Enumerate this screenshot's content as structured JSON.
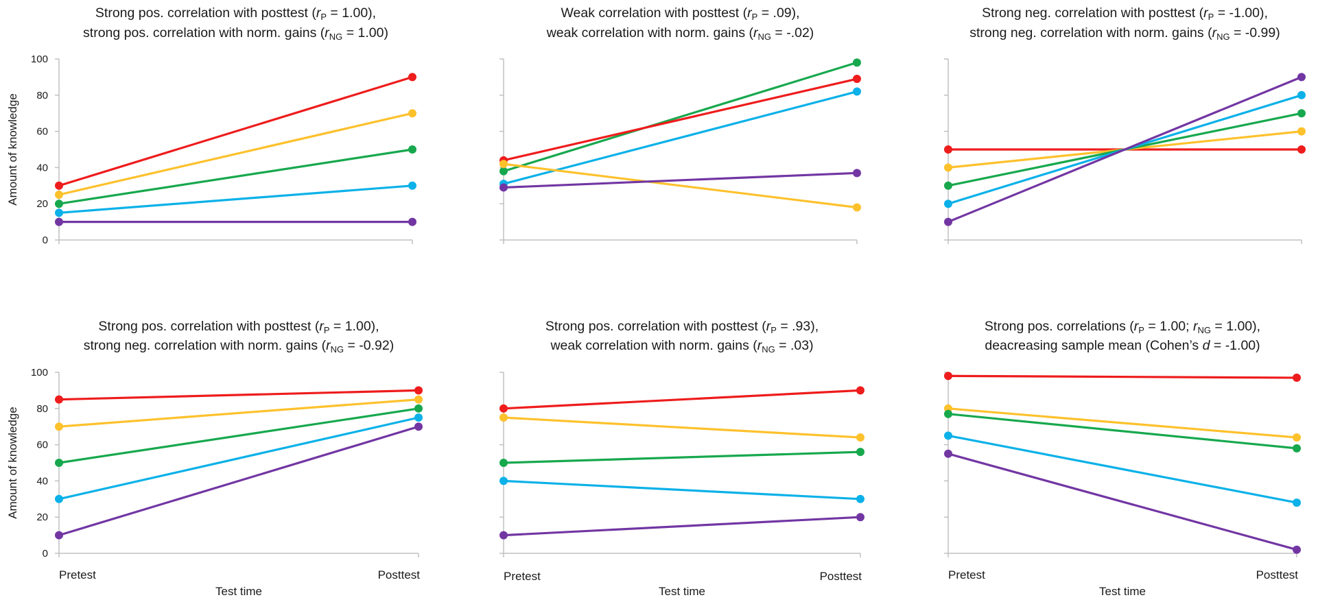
{
  "colors": {
    "red": "#ee1c1c",
    "yellow": "#fdc12c",
    "green": "#17a84e",
    "blue": "#0bb1e8",
    "purple": "#7236a3",
    "axis": "#c0c0c0"
  },
  "chart_data": [
    {
      "type": "line",
      "title_lines": [
        [
          {
            "t": "Strong pos. correlation with posttest ("
          },
          {
            "t": "r",
            "i": true
          },
          {
            "t": "P",
            "s": true
          },
          {
            "t": " = 1.00),"
          }
        ],
        [
          {
            "t": "strong pos. correlation with norm. gains ("
          },
          {
            "t": "r",
            "i": true
          },
          {
            "t": "NG",
            "s": true
          },
          {
            "t": " = 1.00)"
          }
        ]
      ],
      "categories": [
        "Pretest",
        "Posttest"
      ],
      "show_categories": false,
      "xlabel": "",
      "ylabel": "Amount of knowledge",
      "show_ytick_labels": true,
      "yticks": [
        0,
        20,
        40,
        60,
        80,
        100
      ],
      "ylim": [
        0,
        100
      ],
      "series": [
        {
          "color": "#ee1c1c",
          "values": [
            30,
            90
          ]
        },
        {
          "color": "#fdc12c",
          "values": [
            25,
            70
          ]
        },
        {
          "color": "#17a84e",
          "values": [
            20,
            50
          ]
        },
        {
          "color": "#0bb1e8",
          "values": [
            15,
            30
          ]
        },
        {
          "color": "#7236a3",
          "values": [
            10,
            10
          ]
        }
      ]
    },
    {
      "type": "line",
      "title_lines": [
        [
          {
            "t": "Weak correlation with posttest ("
          },
          {
            "t": "r",
            "i": true
          },
          {
            "t": "P",
            "s": true
          },
          {
            "t": " = .09),"
          }
        ],
        [
          {
            "t": "weak correlation with norm. gains ("
          },
          {
            "t": "r",
            "i": true
          },
          {
            "t": "NG",
            "s": true
          },
          {
            "t": " = -.02)"
          }
        ]
      ],
      "categories": [
        "Pretest",
        "Posttest"
      ],
      "show_categories": false,
      "xlabel": "",
      "ylabel": "",
      "show_ytick_labels": false,
      "yticks": [
        0,
        20,
        40,
        60,
        80,
        100
      ],
      "ylim": [
        0,
        100
      ],
      "series": [
        {
          "color": "#17a84e",
          "values": [
            38,
            98
          ]
        },
        {
          "color": "#ee1c1c",
          "values": [
            44,
            89
          ]
        },
        {
          "color": "#0bb1e8",
          "values": [
            31,
            82
          ]
        },
        {
          "color": "#fdc12c",
          "values": [
            42,
            18
          ]
        },
        {
          "color": "#7236a3",
          "values": [
            29,
            37
          ]
        }
      ]
    },
    {
      "type": "line",
      "title_lines": [
        [
          {
            "t": "Strong neg. correlation with posttest ("
          },
          {
            "t": "r",
            "i": true
          },
          {
            "t": "P",
            "s": true
          },
          {
            "t": " = -1.00),"
          }
        ],
        [
          {
            "t": "strong neg. correlation with norm. gains ("
          },
          {
            "t": "r",
            "i": true
          },
          {
            "t": "NG",
            "s": true
          },
          {
            "t": " = -0.99)"
          }
        ]
      ],
      "categories": [
        "Pretest",
        "Posttest"
      ],
      "show_categories": false,
      "xlabel": "",
      "ylabel": "",
      "show_ytick_labels": false,
      "yticks": [
        0,
        20,
        40,
        60,
        80,
        100
      ],
      "ylim": [
        0,
        100
      ],
      "series": [
        {
          "color": "#ee1c1c",
          "values": [
            50,
            50
          ]
        },
        {
          "color": "#fdc12c",
          "values": [
            40,
            60
          ]
        },
        {
          "color": "#17a84e",
          "values": [
            30,
            70
          ]
        },
        {
          "color": "#0bb1e8",
          "values": [
            20,
            80
          ]
        },
        {
          "color": "#7236a3",
          "values": [
            10,
            90
          ]
        }
      ]
    },
    {
      "type": "line",
      "title_lines": [
        [
          {
            "t": "Strong pos. correlation with posttest ("
          },
          {
            "t": "r",
            "i": true
          },
          {
            "t": "P",
            "s": true
          },
          {
            "t": " = 1.00),"
          }
        ],
        [
          {
            "t": "strong neg. correlation with norm. gains ("
          },
          {
            "t": "r",
            "i": true
          },
          {
            "t": "NG",
            "s": true
          },
          {
            "t": " = -0.92)"
          }
        ]
      ],
      "categories": [
        "Pretest",
        "Posttest"
      ],
      "show_categories": true,
      "xlabel": "Test time",
      "ylabel": "Amount of knowledge",
      "show_ytick_labels": true,
      "yticks": [
        0,
        20,
        40,
        60,
        80,
        100
      ],
      "ylim": [
        0,
        100
      ],
      "series": [
        {
          "color": "#ee1c1c",
          "values": [
            85,
            90
          ]
        },
        {
          "color": "#fdc12c",
          "values": [
            70,
            85
          ]
        },
        {
          "color": "#17a84e",
          "values": [
            50,
            80
          ]
        },
        {
          "color": "#0bb1e8",
          "values": [
            30,
            75
          ]
        },
        {
          "color": "#7236a3",
          "values": [
            10,
            70
          ]
        }
      ]
    },
    {
      "type": "line",
      "title_lines": [
        [
          {
            "t": "Strong pos. correlation with posttest ("
          },
          {
            "t": "r",
            "i": true
          },
          {
            "t": "P",
            "s": true
          },
          {
            "t": " = .93),"
          }
        ],
        [
          {
            "t": "weak correlation with norm. gains ("
          },
          {
            "t": "r",
            "i": true
          },
          {
            "t": "NG",
            "s": true
          },
          {
            "t": " = .03)"
          }
        ]
      ],
      "categories": [
        "Pretest",
        "Posttest"
      ],
      "show_categories": true,
      "xlabel": "Test time",
      "ylabel": "",
      "show_ytick_labels": false,
      "yticks": [
        0,
        20,
        40,
        60,
        80,
        100
      ],
      "ylim": [
        0,
        100
      ],
      "series": [
        {
          "color": "#ee1c1c",
          "values": [
            80,
            90
          ]
        },
        {
          "color": "#fdc12c",
          "values": [
            75,
            64
          ]
        },
        {
          "color": "#17a84e",
          "values": [
            50,
            56
          ]
        },
        {
          "color": "#0bb1e8",
          "values": [
            40,
            30
          ]
        },
        {
          "color": "#7236a3",
          "values": [
            10,
            20
          ]
        }
      ]
    },
    {
      "type": "line",
      "title_lines": [
        [
          {
            "t": "Strong pos. correlations ("
          },
          {
            "t": "r",
            "i": true
          },
          {
            "t": "P",
            "s": true
          },
          {
            "t": " = 1.00; "
          },
          {
            "t": "r",
            "i": true
          },
          {
            "t": "NG",
            "s": true
          },
          {
            "t": " = 1.00),"
          }
        ],
        [
          {
            "t": "deacreasing sample mean (Cohen’s "
          },
          {
            "t": "d",
            "i": true
          },
          {
            "t": " = -1.00)"
          }
        ]
      ],
      "categories": [
        "Pretest",
        "Posttest"
      ],
      "show_categories": true,
      "xlabel": "Test time",
      "ylabel": "",
      "show_ytick_labels": false,
      "yticks": [
        0,
        20,
        40,
        60,
        80,
        100
      ],
      "ylim": [
        0,
        100
      ],
      "series": [
        {
          "color": "#ee1c1c",
          "values": [
            98,
            97
          ]
        },
        {
          "color": "#fdc12c",
          "values": [
            80,
            64
          ]
        },
        {
          "color": "#17a84e",
          "values": [
            77,
            58
          ]
        },
        {
          "color": "#0bb1e8",
          "values": [
            65,
            28
          ]
        },
        {
          "color": "#7236a3",
          "values": [
            55,
            2
          ]
        }
      ]
    }
  ]
}
